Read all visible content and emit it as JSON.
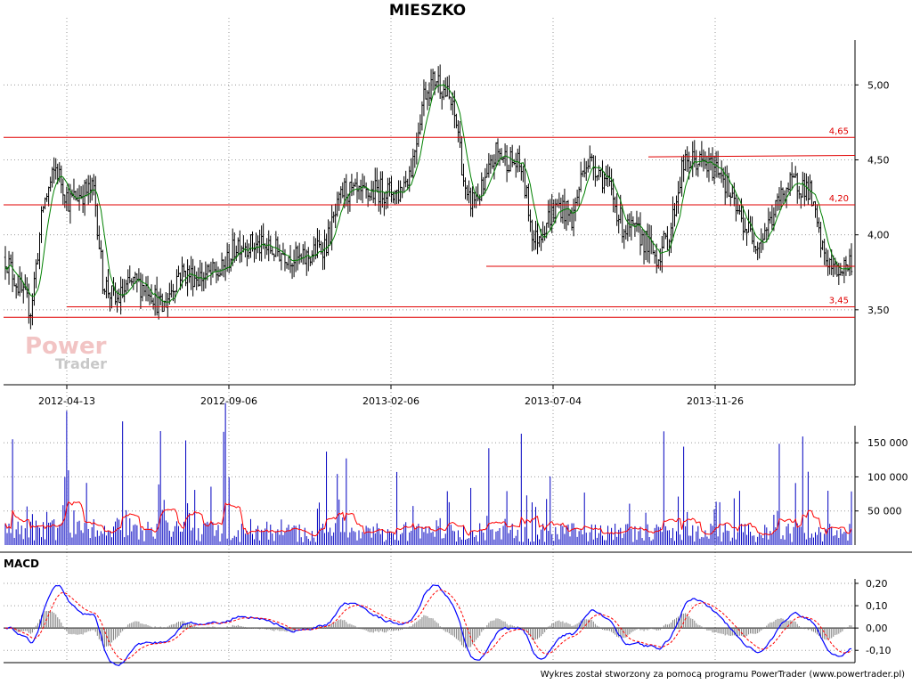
{
  "title": "MIESZKO",
  "macd_label": "MACD",
  "footer": "Wykres został stworzony za pomocą programu PowerTrader (www.powertrader.pl)",
  "watermark": {
    "line1": "Power",
    "line2": "Trader"
  },
  "colors": {
    "candles": "#000000",
    "ma": "#008000",
    "levels": "#e00000",
    "volume": "#0000c0",
    "volume_avg": "#ff0000",
    "macd": "#0000ff",
    "signal": "#ff0000",
    "histogram": "#808080"
  },
  "chart_data": [
    {
      "type": "candlestick",
      "name": "price",
      "title": "MIESZKO",
      "x_ticks": [
        "2012-04-13",
        "2012-09-06",
        "2013-02-06",
        "2013-07-04",
        "2013-11-26"
      ],
      "ylim": [
        3.0,
        5.4
      ],
      "y_ticks": [
        3.5,
        4.0,
        4.5,
        5.0
      ],
      "y_tick_labels": [
        "3,50",
        "4,00",
        "4,50",
        "5,00"
      ],
      "levels": [
        {
          "value": 4.65,
          "label": "4,65"
        },
        {
          "value": 4.2,
          "label": "4,20"
        },
        {
          "value": 3.45,
          "label": ""
        },
        {
          "value": 3.52,
          "label": "3,45"
        }
      ],
      "price_path": [
        [
          0,
          3.85
        ],
        [
          0.02,
          3.6
        ],
        [
          0.03,
          3.5
        ],
        [
          0.045,
          4.2
        ],
        [
          0.06,
          4.45
        ],
        [
          0.075,
          4.22
        ],
        [
          0.09,
          4.28
        ],
        [
          0.105,
          4.3
        ],
        [
          0.115,
          3.7
        ],
        [
          0.13,
          3.55
        ],
        [
          0.15,
          3.68
        ],
        [
          0.17,
          3.65
        ],
        [
          0.185,
          3.5
        ],
        [
          0.205,
          3.75
        ],
        [
          0.23,
          3.72
        ],
        [
          0.255,
          3.75
        ],
        [
          0.275,
          3.95
        ],
        [
          0.3,
          3.92
        ],
        [
          0.33,
          3.88
        ],
        [
          0.35,
          3.82
        ],
        [
          0.38,
          3.95
        ],
        [
          0.4,
          4.3
        ],
        [
          0.42,
          4.25
        ],
        [
          0.44,
          4.3
        ],
        [
          0.465,
          4.28
        ],
        [
          0.48,
          4.45
        ],
        [
          0.495,
          4.95
        ],
        [
          0.51,
          5.05
        ],
        [
          0.525,
          4.9
        ],
        [
          0.535,
          4.7
        ],
        [
          0.545,
          4.2
        ],
        [
          0.565,
          4.3
        ],
        [
          0.58,
          4.55
        ],
        [
          0.595,
          4.5
        ],
        [
          0.61,
          4.45
        ],
        [
          0.625,
          3.95
        ],
        [
          0.64,
          4.1
        ],
        [
          0.655,
          4.2
        ],
        [
          0.67,
          4.1
        ],
        [
          0.685,
          4.5
        ],
        [
          0.7,
          4.45
        ],
        [
          0.715,
          4.3
        ],
        [
          0.73,
          4.05
        ],
        [
          0.75,
          4.0
        ],
        [
          0.77,
          3.85
        ],
        [
          0.785,
          4.0
        ],
        [
          0.8,
          4.45
        ],
        [
          0.815,
          4.5
        ],
        [
          0.83,
          4.45
        ],
        [
          0.845,
          4.45
        ],
        [
          0.86,
          4.2
        ],
        [
          0.875,
          4.05
        ],
        [
          0.89,
          3.95
        ],
        [
          0.905,
          4.1
        ],
        [
          0.92,
          4.3
        ],
        [
          0.935,
          4.35
        ],
        [
          0.95,
          4.3
        ],
        [
          0.965,
          3.9
        ],
        [
          0.98,
          3.75
        ],
        [
          1.0,
          3.82
        ]
      ]
    },
    {
      "type": "bar",
      "name": "volume",
      "ylim": [
        0,
        175000
      ],
      "y_ticks": [
        50000,
        100000,
        150000
      ],
      "y_tick_labels": [
        "50 000",
        "100 000",
        "150 000"
      ]
    },
    {
      "type": "line",
      "name": "macd",
      "ylim": [
        -0.155,
        0.22
      ],
      "y_ticks": [
        -0.1,
        0.0,
        0.1,
        0.2
      ],
      "y_tick_labels": [
        "-0,10",
        "0,00",
        "0,10",
        "0,20"
      ]
    }
  ]
}
